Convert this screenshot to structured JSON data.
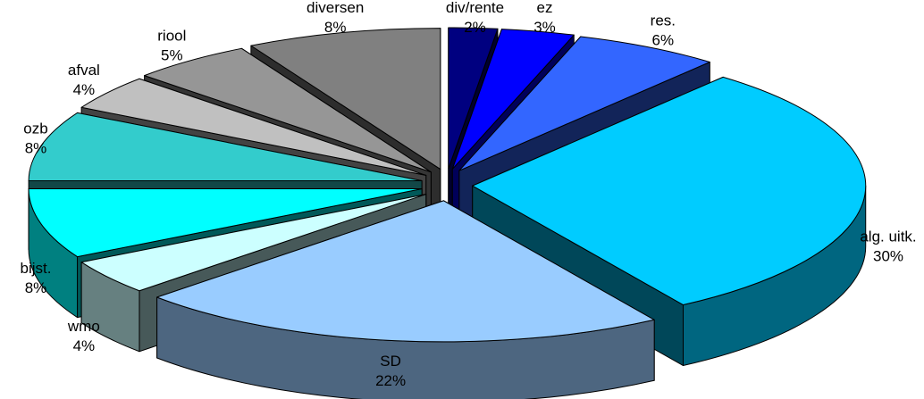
{
  "chart_data": {
    "type": "pie",
    "title": "",
    "style": "3d-exploded",
    "slices": [
      {
        "label": "div/rente",
        "value": 2,
        "value_label": "2%",
        "color": "#000080"
      },
      {
        "label": "ez",
        "value": 3,
        "value_label": "3%",
        "color": "#0000FF"
      },
      {
        "label": "res.",
        "value": 6,
        "value_label": "6%",
        "color": "#3366FF"
      },
      {
        "label": "alg. uitk.",
        "value": 30,
        "value_label": "30%",
        "color": "#00CCFF"
      },
      {
        "label": "SD",
        "value": 22,
        "value_label": "22%",
        "color": "#99CCFF"
      },
      {
        "label": "wmo",
        "value": 4,
        "value_label": "4%",
        "color": "#CCFFFF"
      },
      {
        "label": "bijst.",
        "value": 8,
        "value_label": "8%",
        "color": "#00FFFF"
      },
      {
        "label": "ozb",
        "value": 8,
        "value_label": "8%",
        "color": "#33CCCC"
      },
      {
        "label": "afval",
        "value": 4,
        "value_label": "4%",
        "color": "#C0C0C0"
      },
      {
        "label": "riool",
        "value": 5,
        "value_label": "5%",
        "color": "#969696"
      },
      {
        "label": "diversen",
        "value": 8,
        "value_label": "8%",
        "color": "#808080"
      }
    ]
  }
}
